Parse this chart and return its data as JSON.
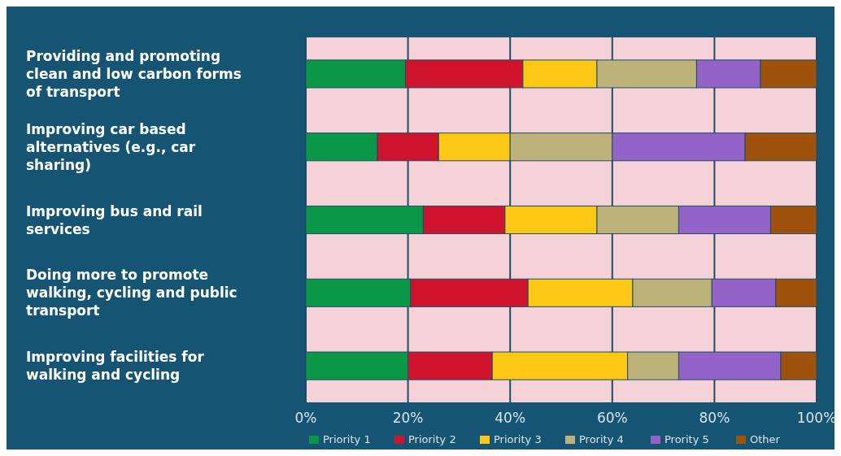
{
  "chart_data": {
    "type": "bar",
    "orientation": "horizontal",
    "stacked": true,
    "legend": "bottom",
    "grid": "x",
    "categories": [
      "Providing and promoting clean and low carbon forms of transport",
      "Improving car based alternatives (e.g., car sharing)",
      "Improving bus and rail services",
      "Doing more to promote walking, cycling and public transport",
      "Improving facilities for walking and cycling"
    ],
    "series": [
      {
        "name": "Priority 1",
        "color": "#0a9748",
        "values": [
          19.5,
          14,
          23,
          20.5,
          20
        ]
      },
      {
        "name": "Priority 2",
        "color": "#d0132c",
        "values": [
          23,
          12,
          16,
          23,
          16.5
        ]
      },
      {
        "name": "Priority 3",
        "color": "#fdc814",
        "values": [
          14.5,
          14,
          18,
          20.5,
          26.5
        ]
      },
      {
        "name": "Prority 4",
        "color": "#bdb27a",
        "values": [
          19.5,
          20,
          16,
          15.5,
          10
        ]
      },
      {
        "name": "Prority 5",
        "color": "#9363c8",
        "values": [
          12.5,
          26,
          18,
          12.5,
          20
        ]
      },
      {
        "name": "Other",
        "color": "#9e520c",
        "values": [
          11,
          14,
          9,
          8,
          7
        ]
      }
    ],
    "xlim": [
      0,
      100
    ],
    "xticks": [
      {
        "value": 0,
        "label": "0%"
      },
      {
        "value": 20,
        "label": "20%"
      },
      {
        "value": 40,
        "label": "40%"
      },
      {
        "value": 60,
        "label": "60%"
      },
      {
        "value": 80,
        "label": "80%"
      },
      {
        "value": 100,
        "label": "100%"
      }
    ]
  }
}
